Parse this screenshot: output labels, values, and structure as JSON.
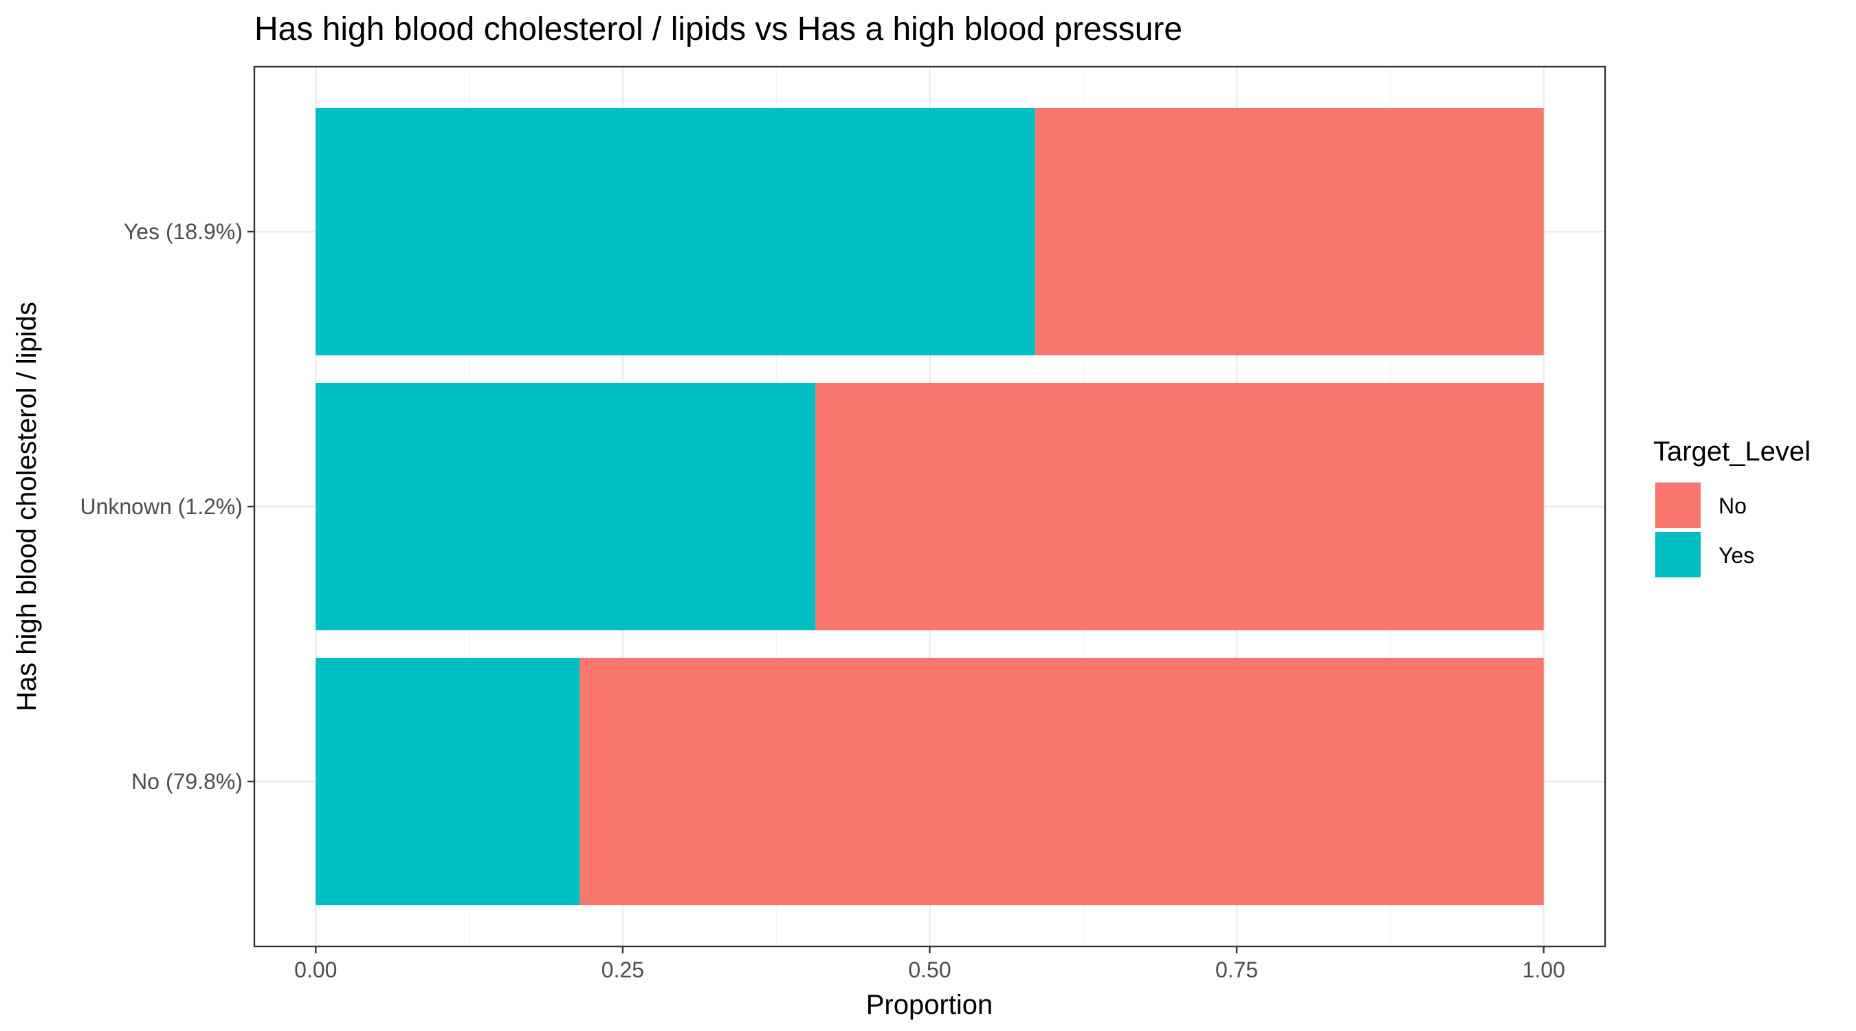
{
  "chart_data": {
    "type": "bar",
    "orientation": "horizontal",
    "stacked": true,
    "title": "Has high blood cholesterol / lipids vs Has a high blood pressure",
    "xlabel": "Proportion",
    "ylabel": "Has high blood cholesterol / lipids",
    "xlim": [
      0,
      1
    ],
    "x_ticks": [
      "0.00",
      "0.25",
      "0.50",
      "0.75",
      "1.00"
    ],
    "categories": [
      "No (79.8%)",
      "Unknown (1.2%)",
      "Yes (18.9%)"
    ],
    "series": [
      {
        "name": "Yes",
        "color": "#00BFC4",
        "values": [
          0.215,
          0.407,
          0.586
        ]
      },
      {
        "name": "No",
        "color": "#F8766D",
        "values": [
          0.785,
          0.593,
          0.414
        ]
      }
    ],
    "legend": {
      "title": "Target_Level",
      "position": "right",
      "entries": [
        {
          "label": "No",
          "color": "#F8766D"
        },
        {
          "label": "Yes",
          "color": "#00BFC4"
        }
      ]
    },
    "grid": true,
    "panel_border_color": "#333333"
  }
}
